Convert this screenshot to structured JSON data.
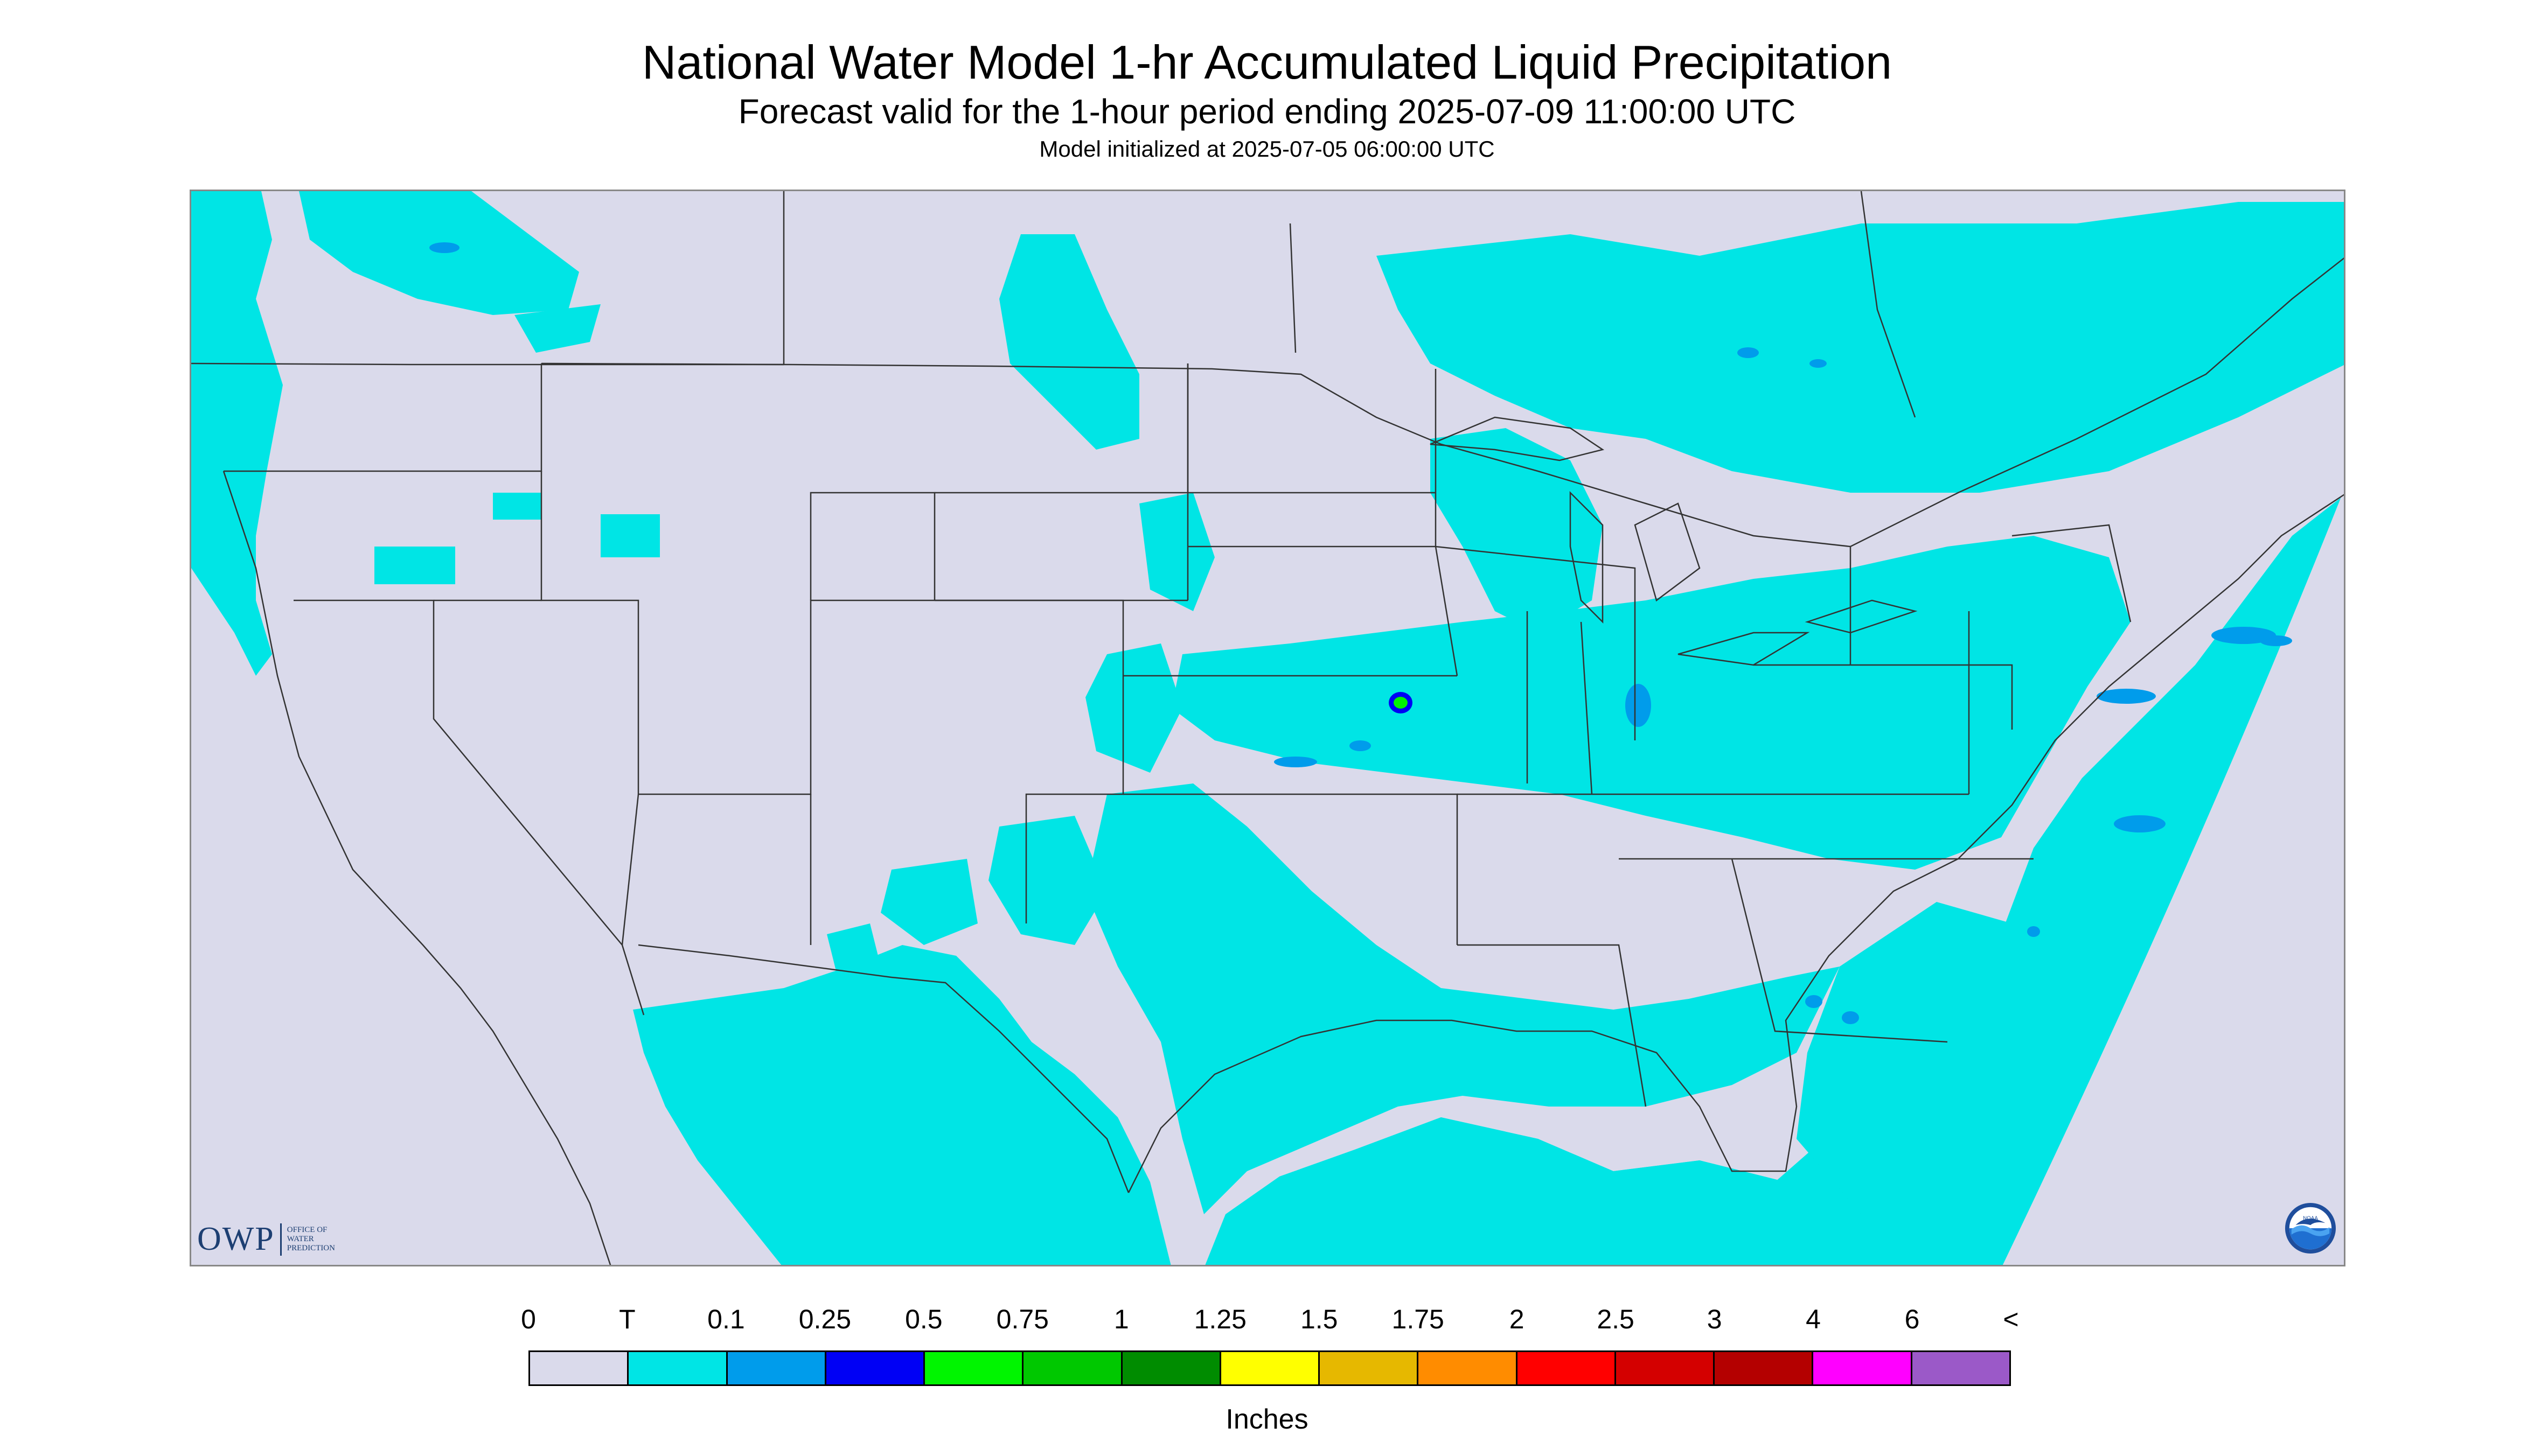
{
  "title": "National Water Model 1-hr Accumulated Liquid Precipitation",
  "subtitle": "Forecast valid for the 1-hour period ending 2025-07-09 11:00:00 UTC",
  "init_line": "Model initialized at 2025-07-05 06:00:00 UTC",
  "logos": {
    "owp_mark": "OWP",
    "owp_text": "OFFICE OF WATER PREDICTION",
    "noaa": "NOAA"
  },
  "legend": {
    "tick_labels": [
      "0",
      "T",
      "0.1",
      "0.25",
      "0.5",
      "0.75",
      "1",
      "1.25",
      "1.5",
      "1.75",
      "2",
      "2.5",
      "3",
      "4",
      "6",
      "<"
    ],
    "colors": [
      "#dadaeb",
      "#00e5e5",
      "#009ceb",
      "#0000f5",
      "#00f500",
      "#00c800",
      "#008c00",
      "#ffff00",
      "#e6b800",
      "#ff8c00",
      "#ff0000",
      "#d40000",
      "#b40000",
      "#ff00ff",
      "#9b59c8"
    ],
    "units": "Inches"
  },
  "map": {
    "background_color": "#dadaeb",
    "outside_domain_color": "#dadaeb",
    "precip_color_trace": "#00e5e5",
    "precip_color_01": "#009ceb",
    "precip_color_025": "#0000f5",
    "precip_color_05": "#00f500",
    "boundary_color": "#333333",
    "icons": [
      "owp-logo",
      "noaa-logo"
    ]
  }
}
